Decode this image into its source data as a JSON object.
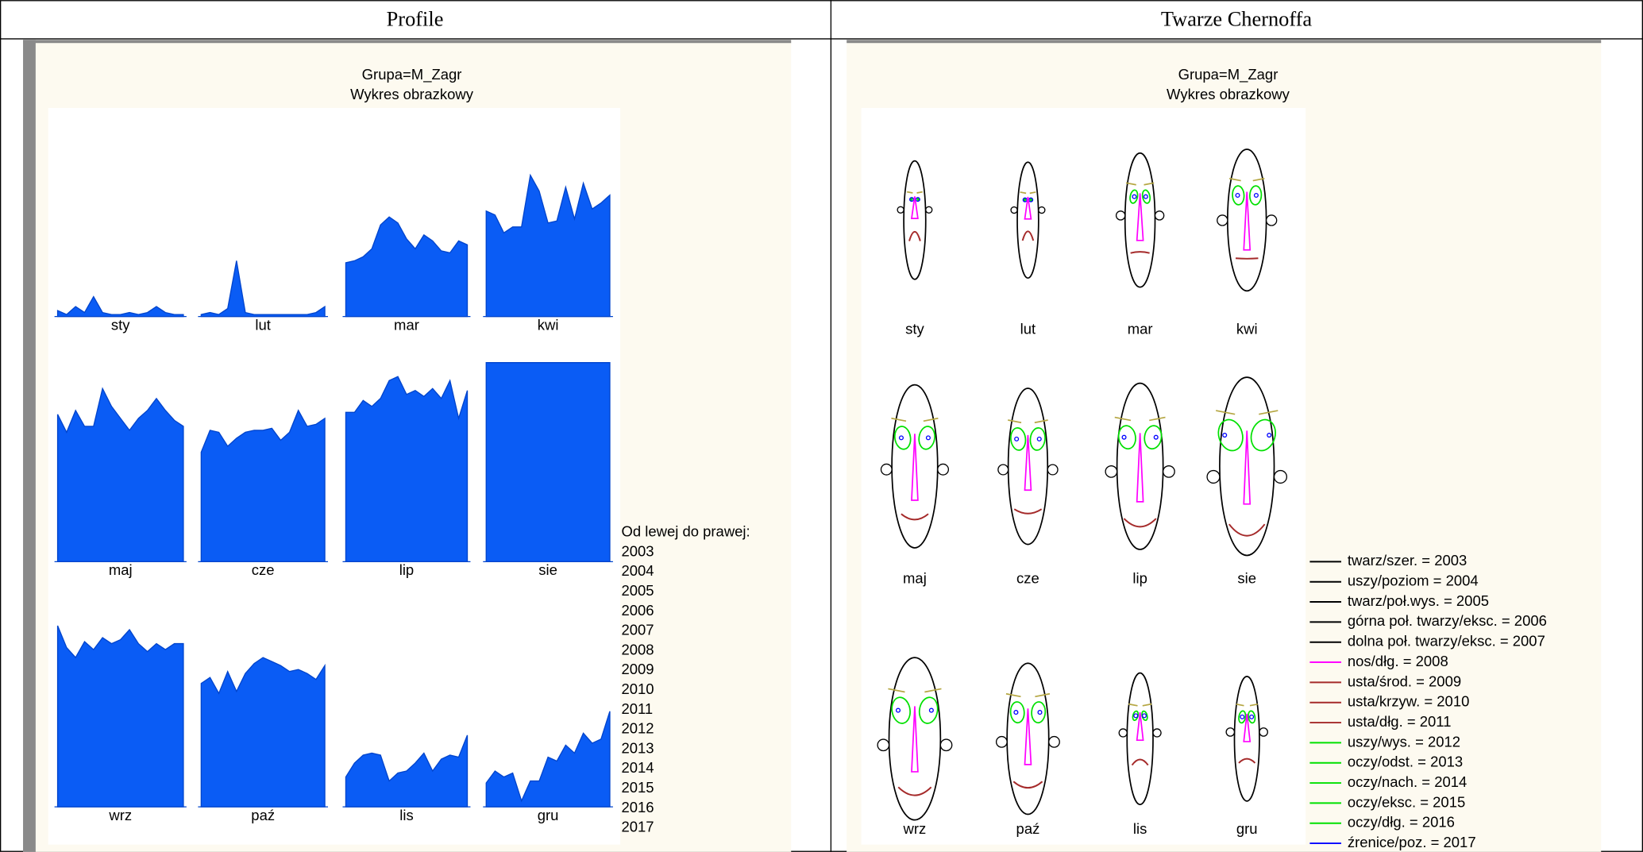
{
  "header": {
    "left": "Profile",
    "right": "Twarze Chernoffa"
  },
  "chart_data": [
    {
      "type": "profile",
      "title": "Grupa=M_Zagr",
      "subtitle": "Wykres obrazkowy",
      "color": "#0a5cf5",
      "legend_title": "Od lewej do prawej:",
      "order": [
        "2003",
        "2004",
        "2005",
        "2006",
        "2007",
        "2008",
        "2009",
        "2010",
        "2011",
        "2012",
        "2013",
        "2014",
        "2015",
        "2016",
        "2017"
      ],
      "ylim": [
        0,
        1
      ],
      "panels": [
        {
          "name": "sty",
          "values": [
            0.03,
            0.01,
            0.05,
            0.02,
            0.1,
            0.02,
            0.01,
            0.01,
            0.02,
            0.01,
            0.02,
            0.05,
            0.02,
            0.01,
            0.01
          ]
        },
        {
          "name": "lut",
          "values": [
            0.01,
            0.02,
            0.01,
            0.04,
            0.28,
            0.02,
            0.01,
            0.01,
            0.01,
            0.01,
            0.01,
            0.01,
            0.01,
            0.02,
            0.05
          ]
        },
        {
          "name": "mar",
          "values": [
            0.27,
            0.28,
            0.3,
            0.34,
            0.46,
            0.5,
            0.47,
            0.39,
            0.34,
            0.41,
            0.38,
            0.33,
            0.32,
            0.38,
            0.36
          ]
        },
        {
          "name": "kwi",
          "values": [
            0.53,
            0.51,
            0.42,
            0.45,
            0.45,
            0.71,
            0.63,
            0.47,
            0.48,
            0.65,
            0.49,
            0.67,
            0.54,
            0.57,
            0.61
          ]
        },
        {
          "name": "maj",
          "values": [
            0.74,
            0.65,
            0.76,
            0.68,
            0.68,
            0.87,
            0.78,
            0.72,
            0.66,
            0.72,
            0.76,
            0.82,
            0.76,
            0.71,
            0.68
          ]
        },
        {
          "name": "cze",
          "values": [
            0.55,
            0.66,
            0.65,
            0.58,
            0.62,
            0.65,
            0.66,
            0.66,
            0.67,
            0.61,
            0.65,
            0.76,
            0.68,
            0.69,
            0.72
          ]
        },
        {
          "name": "lip",
          "values": [
            0.75,
            0.75,
            0.81,
            0.78,
            0.82,
            0.91,
            0.93,
            0.84,
            0.86,
            0.83,
            0.87,
            0.82,
            0.91,
            0.72,
            0.86
          ]
        },
        {
          "name": "sie",
          "values": [
            1,
            1,
            1,
            1,
            1,
            1,
            1,
            1,
            1,
            1,
            1,
            1,
            1,
            1,
            1
          ]
        },
        {
          "name": "wrz",
          "values": [
            0.91,
            0.8,
            0.75,
            0.83,
            0.79,
            0.85,
            0.82,
            0.84,
            0.89,
            0.82,
            0.78,
            0.82,
            0.79,
            0.82,
            0.82
          ]
        },
        {
          "name": "paź",
          "values": [
            0.62,
            0.65,
            0.57,
            0.68,
            0.58,
            0.67,
            0.72,
            0.75,
            0.73,
            0.71,
            0.68,
            0.69,
            0.67,
            0.64,
            0.71
          ]
        },
        {
          "name": "lis",
          "values": [
            0.15,
            0.22,
            0.26,
            0.27,
            0.26,
            0.13,
            0.17,
            0.18,
            0.22,
            0.27,
            0.18,
            0.24,
            0.26,
            0.25,
            0.36
          ]
        },
        {
          "name": "gru",
          "values": [
            0.12,
            0.18,
            0.15,
            0.17,
            0.03,
            0.13,
            0.13,
            0.25,
            0.23,
            0.31,
            0.27,
            0.37,
            0.32,
            0.34,
            0.48
          ]
        }
      ]
    },
    {
      "type": "chernoff",
      "title": "Grupa=M_Zagr",
      "subtitle": "Wykres obrazkowy",
      "features": [
        {
          "label": "twarz/szer. = 2003",
          "color": "#000000"
        },
        {
          "label": "uszy/poziom = 2004",
          "color": "#000000"
        },
        {
          "label": "twarz/poł.wys. = 2005",
          "color": "#000000"
        },
        {
          "label": "górna poł. twarzy/eksc. = 2006",
          "color": "#000000"
        },
        {
          "label": "dolna poł. twarzy/eksc. = 2007",
          "color": "#000000"
        },
        {
          "label": "nos/dłg. = 2008",
          "color": "#ff00ff"
        },
        {
          "label": "usta/środ. = 2009",
          "color": "#a52a2a"
        },
        {
          "label": "usta/krzyw. = 2010",
          "color": "#a52a2a"
        },
        {
          "label": "usta/dłg. = 2011",
          "color": "#a52a2a"
        },
        {
          "label": "uszy/wys. = 2012",
          "color": "#00e000"
        },
        {
          "label": "oczy/odst. = 2013",
          "color": "#00e000"
        },
        {
          "label": "oczy/nach. = 2014",
          "color": "#00e000"
        },
        {
          "label": "oczy/eksc. = 2015",
          "color": "#00e000"
        },
        {
          "label": "oczy/dłg. = 2016",
          "color": "#00e000"
        },
        {
          "label": "źrenice/poz. = 2017",
          "color": "#0000ff"
        }
      ]
    }
  ]
}
